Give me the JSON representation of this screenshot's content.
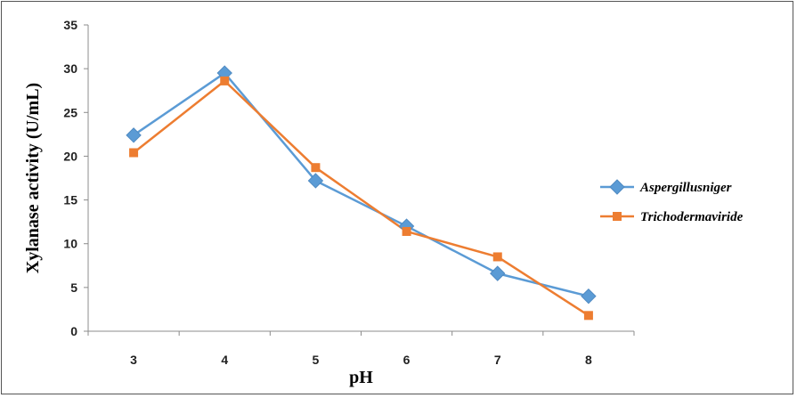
{
  "chart_data": {
    "type": "line",
    "xlabel": "pH",
    "ylabel": "Xylanase activity (U/mL)",
    "categories": [
      "3",
      "4",
      "5",
      "6",
      "7",
      "8"
    ],
    "x": [
      3,
      4,
      5,
      6,
      7,
      8
    ],
    "ylim": [
      0,
      35
    ],
    "yticks": [
      0,
      5,
      10,
      15,
      20,
      25,
      30,
      35
    ],
    "grid": false,
    "legend_position": "right",
    "series": [
      {
        "name": "Aspergillus niger",
        "label": "Aspergillusniger",
        "color": "#5b9bd5",
        "marker": "diamond",
        "values": [
          22.4,
          29.5,
          17.2,
          12.0,
          6.6,
          4.0
        ]
      },
      {
        "name": "Trichoderma viride",
        "label": "Trichodermaviride",
        "color": "#ed7d31",
        "marker": "square",
        "values": [
          20.4,
          28.6,
          18.7,
          11.4,
          8.5,
          1.8
        ]
      }
    ]
  }
}
